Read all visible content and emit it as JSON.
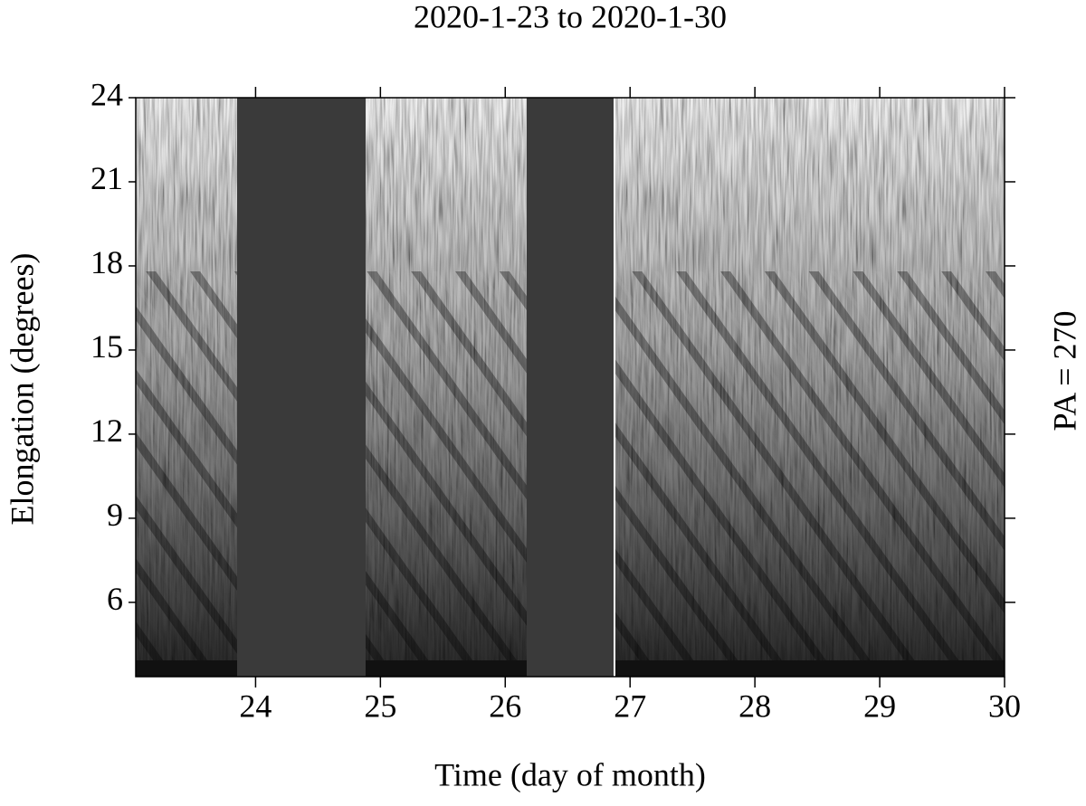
{
  "chart_data": {
    "type": "heatmap",
    "title": "2020-1-23 to 2020-1-30",
    "x_label": "Time (day of month)",
    "y_label": "Elongation (degrees)",
    "side_label": "PA = 270",
    "xlim": [
      23.04,
      30
    ],
    "xticks": [
      24,
      25,
      26,
      27,
      28,
      29,
      30
    ],
    "ylim": [
      3.35,
      24
    ],
    "yticks": [
      6,
      9,
      12,
      15,
      18,
      21,
      24
    ]
  }
}
